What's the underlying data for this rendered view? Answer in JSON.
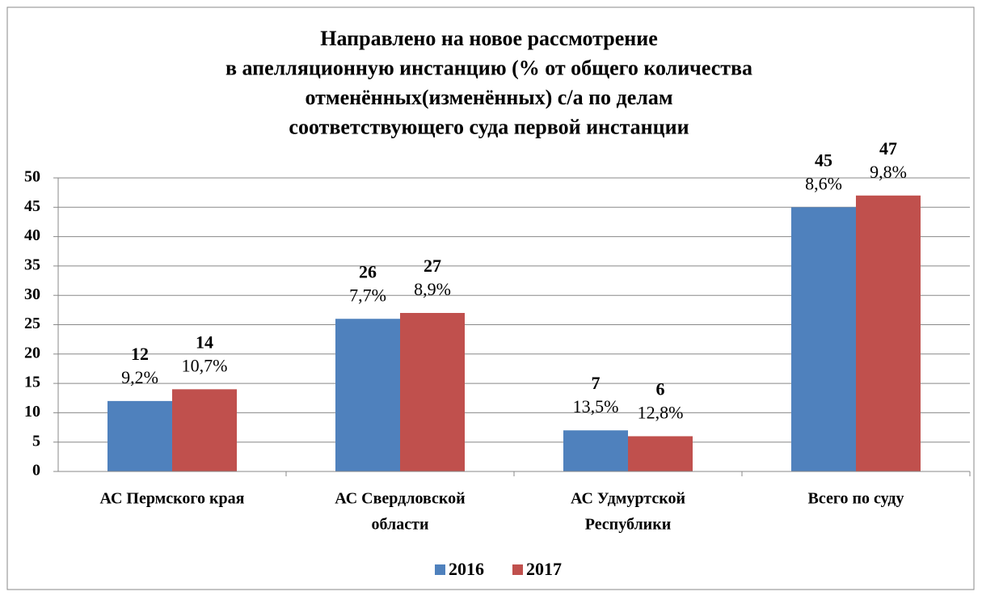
{
  "chart_data": {
    "type": "bar",
    "title": [
      "Направлено на новое рассмотрение",
      "в апелляционную инстанцию (% от общего количества",
      "отменённых(изменённых) с/а по делам",
      "соответствующего суда первой инстанции"
    ],
    "categories": [
      [
        "АС Пермского края"
      ],
      [
        "АС Свердловской",
        "области"
      ],
      [
        "АС Удмуртской",
        "Республики"
      ],
      [
        "Всего по суду"
      ]
    ],
    "series": [
      {
        "name": "2016",
        "color": "#4f81bd",
        "values": [
          12,
          26,
          7,
          45
        ],
        "percentages": [
          "9,2%",
          "7,7%",
          "13,5%",
          "8,6%"
        ]
      },
      {
        "name": "2017",
        "color": "#c0504d",
        "values": [
          14,
          27,
          6,
          47
        ],
        "percentages": [
          "10,7%",
          "8,9%",
          "12,8%",
          "9,8%"
        ]
      }
    ],
    "ylim": [
      0,
      50
    ],
    "yticks": [
      0,
      5,
      10,
      15,
      20,
      25,
      30,
      35,
      40,
      45,
      50
    ],
    "grid": true,
    "legend": "bottom"
  }
}
